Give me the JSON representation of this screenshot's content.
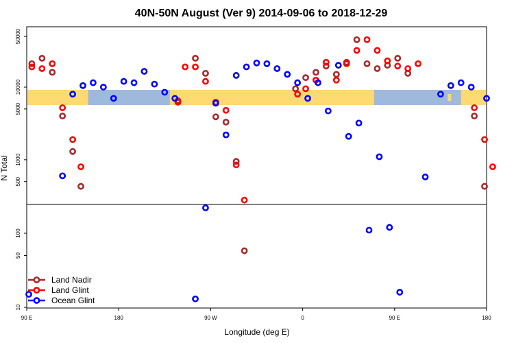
{
  "chart_data": {
    "type": "scatter",
    "title": "40N-50N August (Ver 9)   2014-09-06 to 2018-12-29",
    "xlabel": "Longitude (deg E)",
    "ylabel": "N Total",
    "x_scale": "longitude from 90E, wrapping past 180 and 0 back to 180",
    "x_range": [
      0,
      450
    ],
    "x_ticks": [
      {
        "pos": 0,
        "label": "90 E"
      },
      {
        "pos": 90,
        "label": "180"
      },
      {
        "pos": 180,
        "label": "90 W"
      },
      {
        "pos": 270,
        "label": "0"
      },
      {
        "pos": 360,
        "label": "90 E"
      },
      {
        "pos": 450,
        "label": "180"
      }
    ],
    "y_scale": "log, two segments (upper 300 to 70000, lower 9 to 300)",
    "y_ticks_upper": [
      "50000",
      "10000",
      "5000",
      "1000",
      "500"
    ],
    "y_ticks_lower": [
      "100",
      "50",
      "10"
    ],
    "legend": {
      "position": "bottom-left",
      "entries": [
        {
          "label": "Land Nadir",
          "color": "#a52a2a"
        },
        {
          "label": "Land Glint",
          "color": "#ff0000"
        },
        {
          "label": "Ocean Glint",
          "color": "#0000ff"
        }
      ]
    },
    "series": [
      {
        "name": "Land Nadir",
        "color": "#a52a2a",
        "points": [
          [
            5,
            21000
          ],
          [
            15,
            25000
          ],
          [
            25,
            16000
          ],
          [
            35,
            4000
          ],
          [
            45,
            1300
          ],
          [
            53,
            430
          ],
          [
            148,
            6500
          ],
          [
            165,
            25000
          ],
          [
            175,
            15500
          ],
          [
            185,
            3900
          ],
          [
            195,
            3300
          ],
          [
            205,
            950
          ],
          [
            213,
            58
          ],
          [
            263,
            9500
          ],
          [
            273,
            13500
          ],
          [
            283,
            16000
          ],
          [
            293,
            19500
          ],
          [
            303,
            15000
          ],
          [
            313,
            22000
          ],
          [
            323,
            45000
          ],
          [
            333,
            21000
          ],
          [
            343,
            18000
          ],
          [
            353,
            20000
          ],
          [
            363,
            25000
          ],
          [
            373,
            15500
          ],
          [
            438,
            4000
          ],
          [
            448,
            430
          ]
        ]
      },
      {
        "name": "Land Glint",
        "color": "#ff0000",
        "points": [
          [
            5,
            19000
          ],
          [
            15,
            18000
          ],
          [
            25,
            21000
          ],
          [
            35,
            5200
          ],
          [
            45,
            1900
          ],
          [
            53,
            800
          ],
          [
            148,
            6200
          ],
          [
            155,
            19000
          ],
          [
            165,
            19000
          ],
          [
            175,
            12000
          ],
          [
            185,
            6200
          ],
          [
            195,
            4800
          ],
          [
            205,
            850
          ],
          [
            213,
            280
          ],
          [
            265,
            8000
          ],
          [
            273,
            9500
          ],
          [
            283,
            12500
          ],
          [
            293,
            22000
          ],
          [
            303,
            12500
          ],
          [
            313,
            21000
          ],
          [
            323,
            32000
          ],
          [
            333,
            45000
          ],
          [
            343,
            32000
          ],
          [
            353,
            23000
          ],
          [
            363,
            19500
          ],
          [
            373,
            18000
          ],
          [
            383,
            21000
          ],
          [
            438,
            5200
          ],
          [
            448,
            1900
          ],
          [
            456,
            800
          ]
        ]
      },
      {
        "name": "Ocean Glint",
        "color": "#0000ff",
        "points": [
          [
            2,
            15
          ],
          [
            35,
            600
          ],
          [
            45,
            8000
          ],
          [
            55,
            10500
          ],
          [
            65,
            11500
          ],
          [
            75,
            10000
          ],
          [
            85,
            7000
          ],
          [
            95,
            12000
          ],
          [
            105,
            11500
          ],
          [
            115,
            16500
          ],
          [
            125,
            11000
          ],
          [
            135,
            8500
          ],
          [
            145,
            7000
          ],
          [
            165,
            13
          ],
          [
            175,
            220
          ],
          [
            185,
            6000
          ],
          [
            195,
            2200
          ],
          [
            205,
            14500
          ],
          [
            215,
            19000
          ],
          [
            225,
            21500
          ],
          [
            235,
            21000
          ],
          [
            245,
            18000
          ],
          [
            255,
            15000
          ],
          [
            265,
            11500
          ],
          [
            275,
            7000
          ],
          [
            285,
            11500
          ],
          [
            295,
            4700
          ],
          [
            305,
            20000
          ],
          [
            315,
            2100
          ],
          [
            325,
            3200
          ],
          [
            335,
            110
          ],
          [
            345,
            1100
          ],
          [
            355,
            120
          ],
          [
            365,
            16
          ],
          [
            390,
            580
          ],
          [
            405,
            8000
          ],
          [
            415,
            10500
          ],
          [
            425,
            11500
          ],
          [
            435,
            10000
          ],
          [
            450,
            7000
          ]
        ]
      }
    ]
  }
}
